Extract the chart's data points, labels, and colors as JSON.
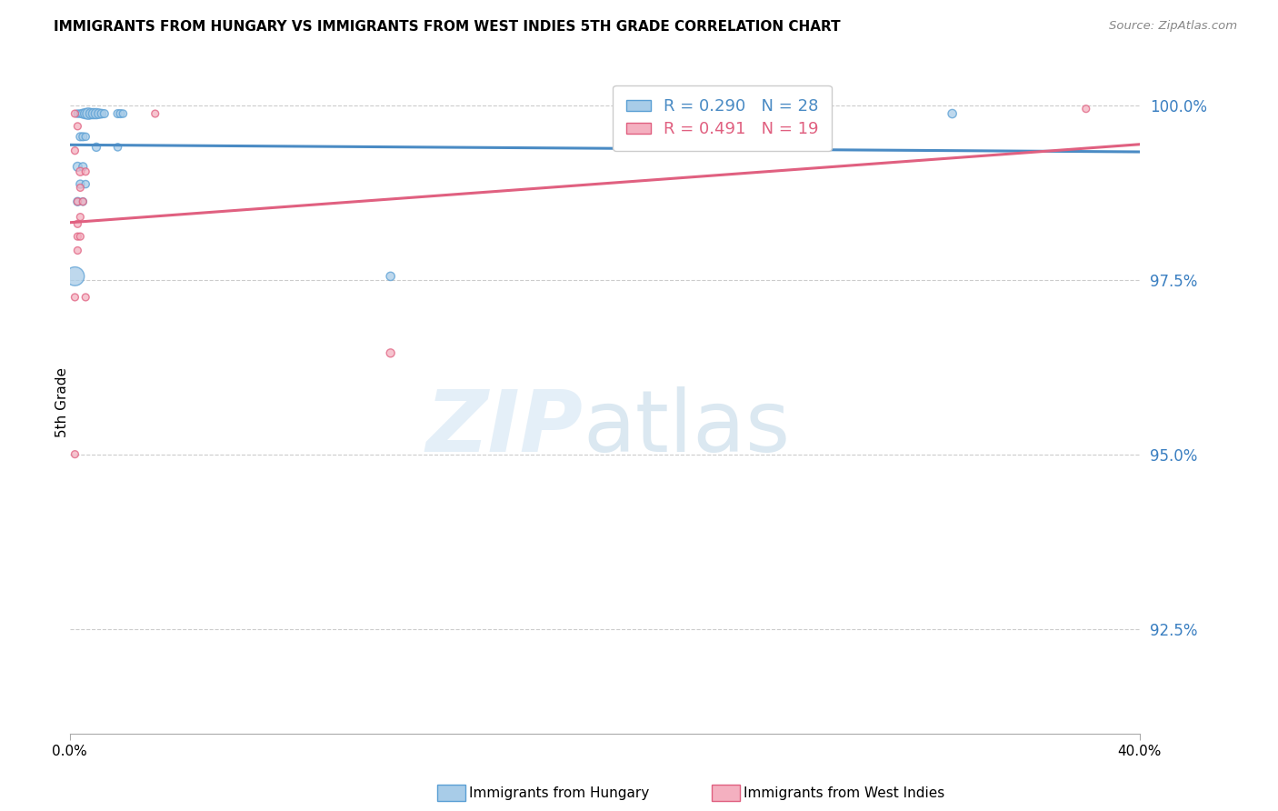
{
  "title": "IMMIGRANTS FROM HUNGARY VS IMMIGRANTS FROM WEST INDIES 5TH GRADE CORRELATION CHART",
  "source": "Source: ZipAtlas.com",
  "ylabel_label": "5th Grade",
  "xlim": [
    0.0,
    0.4
  ],
  "ylim": [
    0.91,
    1.005
  ],
  "yticks": [
    0.925,
    0.95,
    0.975,
    1.0
  ],
  "ytick_labels": [
    "92.5%",
    "95.0%",
    "97.5%",
    "100.0%"
  ],
  "xticks": [
    0.0,
    0.4
  ],
  "xtick_labels": [
    "0.0%",
    "40.0%"
  ],
  "blue_r": "0.290",
  "blue_n": "28",
  "pink_r": "0.491",
  "pink_n": "19",
  "blue_fill": "#a8cce8",
  "pink_fill": "#f4b0c0",
  "blue_edge": "#5a9fd4",
  "pink_edge": "#e06080",
  "blue_line": "#4a8bc4",
  "pink_line": "#e06080",
  "legend_label_blue": "Immigrants from Hungary",
  "legend_label_pink": "Immigrants from West Indies",
  "blue_points_x": [
    0.003,
    0.004,
    0.005,
    0.006,
    0.007,
    0.008,
    0.009,
    0.01,
    0.011,
    0.012,
    0.013,
    0.018,
    0.019,
    0.02,
    0.004,
    0.005,
    0.006,
    0.01,
    0.018,
    0.003,
    0.005,
    0.004,
    0.006,
    0.003,
    0.005,
    0.12,
    0.33,
    0.002
  ],
  "blue_points_y": [
    0.9988,
    0.9988,
    0.9988,
    0.9988,
    0.9988,
    0.9988,
    0.9988,
    0.9988,
    0.9988,
    0.9988,
    0.9988,
    0.9988,
    0.9988,
    0.9988,
    0.9955,
    0.9955,
    0.9955,
    0.994,
    0.994,
    0.9912,
    0.9912,
    0.9887,
    0.9887,
    0.9862,
    0.9862,
    0.9755,
    0.9988,
    0.9755
  ],
  "blue_sizes": [
    35,
    35,
    50,
    65,
    80,
    65,
    65,
    65,
    55,
    45,
    40,
    40,
    40,
    35,
    40,
    40,
    35,
    42,
    35,
    50,
    42,
    42,
    35,
    42,
    35,
    45,
    45,
    220
  ],
  "pink_points_x": [
    0.002,
    0.003,
    0.004,
    0.006,
    0.003,
    0.005,
    0.004,
    0.003,
    0.003,
    0.004,
    0.003,
    0.002,
    0.006,
    0.12,
    0.002,
    0.032,
    0.38,
    0.002,
    0.004
  ],
  "pink_points_y": [
    0.9988,
    0.997,
    0.9905,
    0.9905,
    0.9862,
    0.9862,
    0.984,
    0.983,
    0.9812,
    0.9812,
    0.9792,
    0.9725,
    0.9725,
    0.9645,
    0.95,
    0.9988,
    0.9995,
    0.9935,
    0.9882
  ],
  "pink_sizes": [
    32,
    32,
    42,
    32,
    32,
    32,
    32,
    32,
    32,
    32,
    32,
    32,
    32,
    42,
    32,
    32,
    32,
    32,
    32
  ],
  "blue_trendline_x0": 0.0,
  "blue_trendline_x1": 0.4,
  "pink_trendline_x0": 0.0,
  "pink_trendline_x1": 0.4
}
